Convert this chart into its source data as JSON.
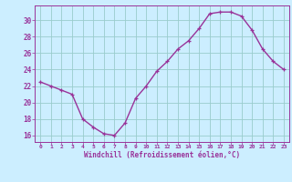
{
  "x": [
    0,
    1,
    2,
    3,
    4,
    5,
    6,
    7,
    8,
    9,
    10,
    11,
    12,
    13,
    14,
    15,
    16,
    17,
    18,
    19,
    20,
    21,
    22,
    23
  ],
  "y": [
    22.5,
    22.0,
    21.5,
    21.0,
    18.0,
    17.0,
    16.2,
    16.0,
    17.5,
    20.5,
    22.0,
    23.8,
    25.0,
    26.5,
    27.5,
    29.0,
    30.8,
    31.0,
    31.0,
    30.5,
    28.8,
    26.5,
    25.0,
    24.0
  ],
  "line_color": "#993399",
  "marker": "+",
  "marker_color": "#993399",
  "bg_color": "#cceeff",
  "grid_color": "#99cccc",
  "xlabel": "Windchill (Refroidissement éolien,°C)",
  "xlabel_color": "#993399",
  "tick_color": "#993399",
  "ylabel_ticks": [
    16,
    18,
    20,
    22,
    24,
    26,
    28,
    30
  ],
  "xlim": [
    -0.5,
    23.5
  ],
  "ylim": [
    15.2,
    31.8
  ],
  "xticks": [
    0,
    1,
    2,
    3,
    4,
    5,
    6,
    7,
    8,
    9,
    10,
    11,
    12,
    13,
    14,
    15,
    16,
    17,
    18,
    19,
    20,
    21,
    22,
    23
  ]
}
